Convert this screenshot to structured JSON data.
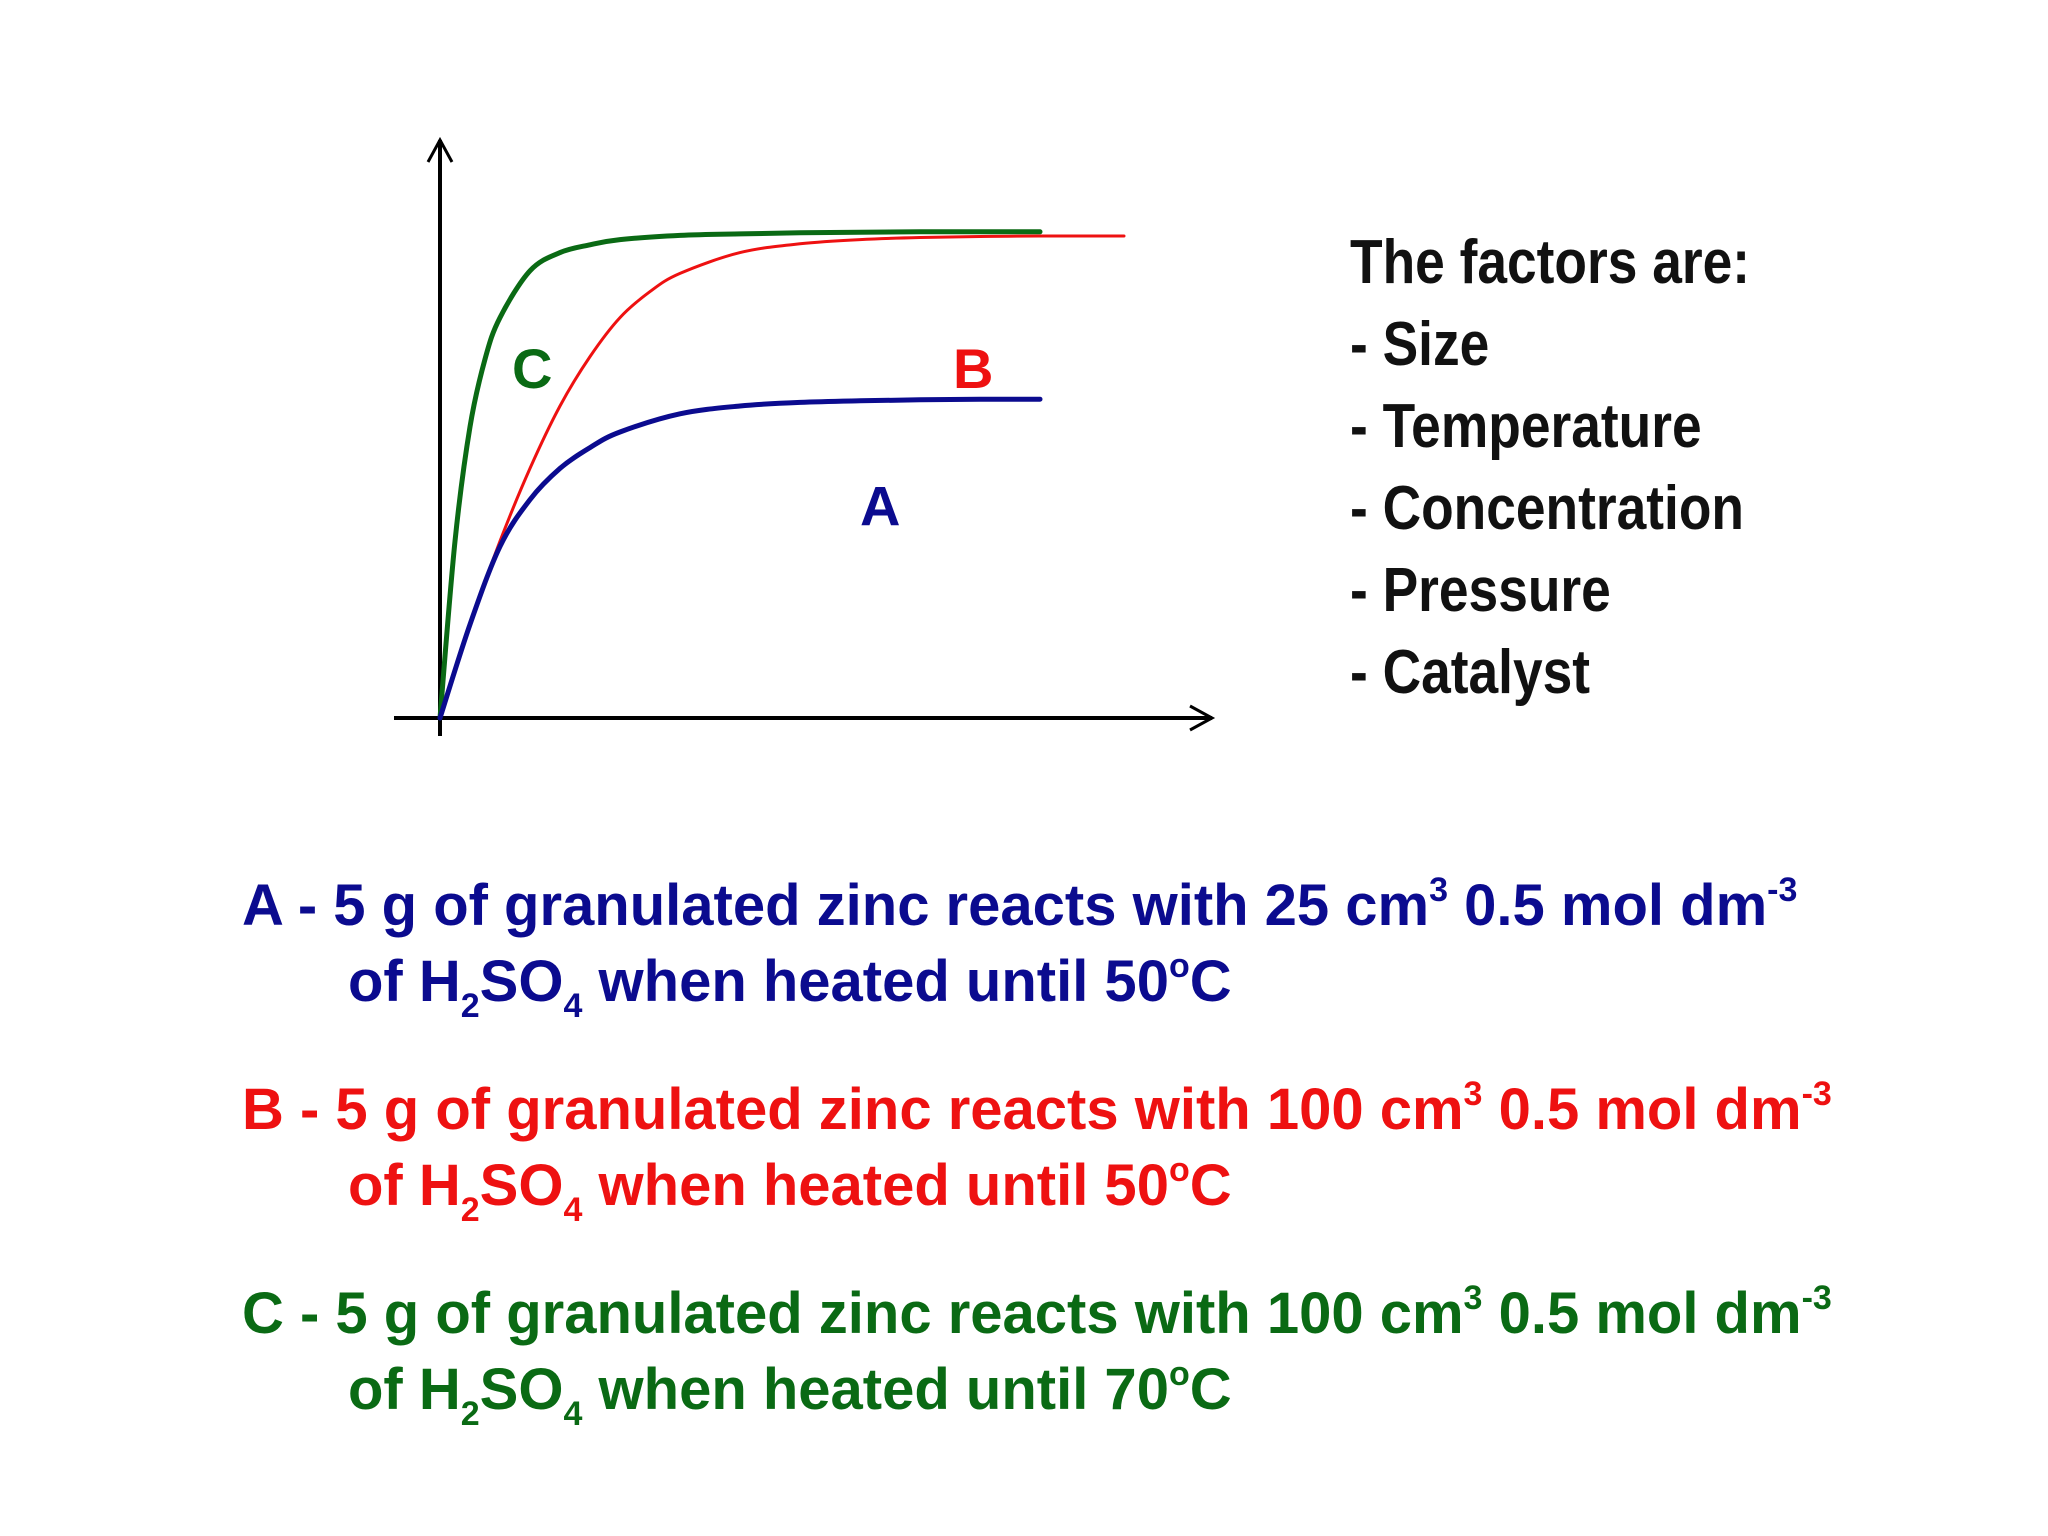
{
  "colors": {
    "A": "#0b0b8f",
    "B": "#ee1111",
    "C": "#0a6a14",
    "axis": "#000000",
    "text": "#111111"
  },
  "chart_data": {
    "type": "line",
    "title": "",
    "xlabel": "",
    "ylabel": "",
    "axes_arrows": true,
    "grid": false,
    "tick_labels": false,
    "xlim": [
      0,
      10
    ],
    "ylim": [
      0,
      10
    ],
    "series": [
      {
        "name": "C",
        "color": "#0a6a14",
        "x": [
          0,
          0.25,
          0.5,
          0.75,
          1,
          1.5,
          2,
          2.5,
          3,
          4,
          5,
          6,
          7,
          8,
          9,
          10
        ],
        "y": [
          0,
          3.4,
          5.6,
          6.9,
          7.7,
          8.6,
          8.95,
          9.1,
          9.2,
          9.28,
          9.31,
          9.33,
          9.34,
          9.35,
          9.35,
          9.35
        ]
      },
      {
        "name": "B",
        "color": "#ee1111",
        "x": [
          0,
          0.5,
          1,
          1.5,
          2,
          2.5,
          3,
          3.5,
          4,
          5,
          6,
          7,
          8,
          9,
          10,
          11.4
        ],
        "y": [
          0,
          1.8,
          3.4,
          4.8,
          6.0,
          6.95,
          7.7,
          8.2,
          8.55,
          8.95,
          9.12,
          9.2,
          9.24,
          9.26,
          9.27,
          9.27
        ]
      },
      {
        "name": "A",
        "color": "#0b0b8f",
        "x": [
          0,
          0.5,
          1,
          1.5,
          2,
          2.5,
          3,
          4,
          5,
          6,
          7,
          8,
          9,
          10
        ],
        "y": [
          0,
          1.8,
          3.3,
          4.2,
          4.8,
          5.2,
          5.5,
          5.85,
          6.0,
          6.07,
          6.1,
          6.12,
          6.13,
          6.13
        ]
      }
    ],
    "curve_labels": [
      "C",
      "B",
      "A"
    ]
  },
  "factors": {
    "heading": "The factors are:",
    "items": [
      "- Size",
      "- Temperature",
      "- Concentration",
      "- Pressure",
      "- Catalyst"
    ]
  },
  "descriptions": [
    {
      "key": "A",
      "line1_pre": "A - 5 g of granulated zinc reacts with 25 cm",
      "line1_sup1": "3",
      "line1_mid": " 0.5 mol dm",
      "line1_sup2": "-3",
      "line2_pre": "of H",
      "line2_sub1": "2",
      "line2_mid": "SO",
      "line2_sub2": "4",
      "line2_post": " when heated until 50",
      "line2_sup": "o",
      "line2_end": "C"
    },
    {
      "key": "B",
      "line1_pre": "B - 5 g of granulated zinc reacts with 100 cm",
      "line1_sup1": "3",
      "line1_mid": " 0.5 mol dm",
      "line1_sup2": "-3",
      "line2_pre": "of H",
      "line2_sub1": "2",
      "line2_mid": "SO",
      "line2_sub2": "4",
      "line2_post": " when heated until 50",
      "line2_sup": "o",
      "line2_end": "C"
    },
    {
      "key": "C",
      "line1_pre": "C - 5 g of granulated zinc reacts with 100 cm",
      "line1_sup1": "3",
      "line1_mid": " 0.5 mol dm",
      "line1_sup2": "-3",
      "line2_pre": "of H",
      "line2_sub1": "2",
      "line2_mid": "SO",
      "line2_sub2": "4",
      "line2_post": " when heated until 70",
      "line2_sup": "o",
      "line2_end": "C"
    }
  ]
}
